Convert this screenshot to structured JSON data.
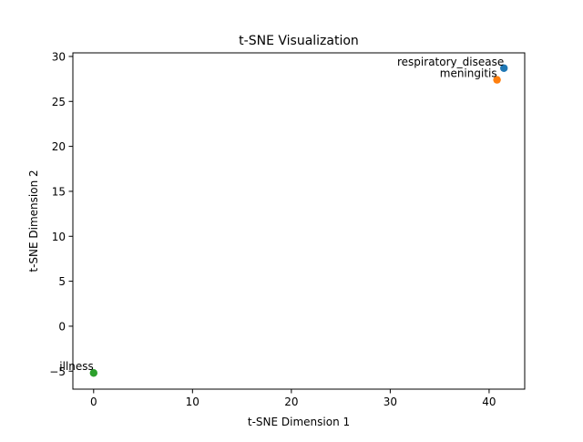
{
  "chart_data": {
    "type": "scatter",
    "title": "t-SNE Visualization",
    "xlabel": "t-SNE Dimension 1",
    "ylabel": "t-SNE Dimension 2",
    "xlim": [
      -2.1,
      43.6
    ],
    "ylim": [
      -7.0,
      30.4
    ],
    "xticks": [
      0,
      10,
      20,
      30,
      40
    ],
    "yticks": [
      -5,
      0,
      5,
      10,
      15,
      20,
      25,
      30
    ],
    "xtick_labels": [
      "0",
      "10",
      "20",
      "30",
      "40"
    ],
    "ytick_labels": [
      "−5",
      "0",
      "5",
      "10",
      "15",
      "20",
      "25",
      "30"
    ],
    "grid": false,
    "points": [
      {
        "label": "respiratory_disease",
        "x": 41.5,
        "y": 28.7,
        "color": "#1f77b4"
      },
      {
        "label": "meningitis",
        "x": 40.8,
        "y": 27.4,
        "color": "#ff7f0e"
      },
      {
        "label": "illness",
        "x": 0.0,
        "y": -5.2,
        "color": "#2ca02c"
      }
    ]
  }
}
